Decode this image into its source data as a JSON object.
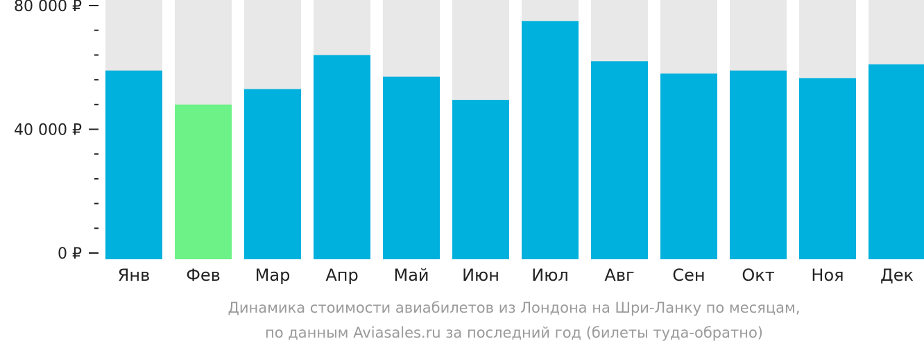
{
  "chart_data": {
    "type": "bar",
    "categories": [
      "Янв",
      "Фев",
      "Мар",
      "Апр",
      "Май",
      "Июн",
      "Июл",
      "Авг",
      "Сен",
      "Окт",
      "Ноя",
      "Дек"
    ],
    "values": [
      59000,
      48000,
      53000,
      64000,
      57000,
      49500,
      75000,
      62000,
      58000,
      59000,
      56500,
      61000
    ],
    "highlight_index": 1,
    "ylim": [
      0,
      80000
    ],
    "yticks": [
      0,
      40000,
      80000
    ],
    "ytick_labels": [
      "0 ₽",
      "40 000 ₽",
      "80 000 ₽"
    ],
    "minor_ticks_per_major": 5,
    "grid": false,
    "xlabel": "",
    "ylabel": "",
    "title": ""
  },
  "colors": {
    "bar": "#00b0dd",
    "highlight": "#6cf287",
    "track": "#e8e8e8",
    "axis": "#222222",
    "caption": "#9a9a9a"
  },
  "caption": {
    "line1": "Динамика стоимости авиабилетов из Лондона на Шри-Ланку по месяцам,",
    "line2": "по данным Aviasales.ru за последний год (билеты туда-обратно)"
  }
}
